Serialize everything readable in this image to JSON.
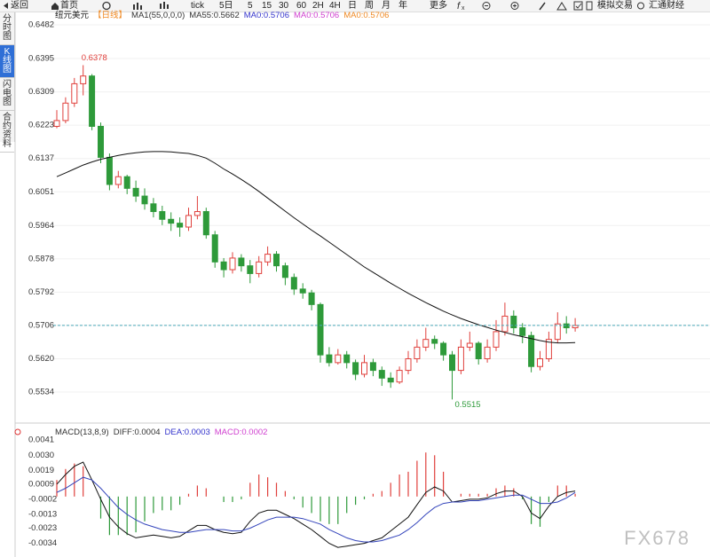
{
  "toolbar": [
    "返回",
    "首页",
    "tick",
    "5日",
    "5",
    "15",
    "30",
    "60",
    "2H",
    "4H",
    "日",
    "周",
    "月",
    "年",
    "更多",
    "模拟交易",
    "汇通财经"
  ],
  "sidebar": {
    "items": [
      "分时图",
      "K线图",
      "闪电图",
      "合约资料"
    ],
    "selected": 1
  },
  "watermark": "FX678",
  "chart_data": [
    {
      "type": "candlestick",
      "title": "纽元美元",
      "subtitle": "【日线】",
      "legend": [
        {
          "text": "MA1(55,0,0,0)",
          "color": "#333333"
        },
        {
          "text": "MA55:0.5662",
          "color": "#333333"
        },
        {
          "text": "MA0:0.5706",
          "color": "#3333cc"
        },
        {
          "text": "MA0:0.5706",
          "color": "#d040d0"
        },
        {
          "text": "MA0:0.5706",
          "color": "#f08a24"
        }
      ],
      "ylim": [
        0.547,
        0.6505
      ],
      "yticks": [
        0.6482,
        0.6395,
        0.6309,
        0.6223,
        0.6137,
        0.6051,
        0.5964,
        0.5878,
        0.5792,
        0.5706,
        {
          "value": 0.562,
          "label": "0.5620"
        },
        0.5534
      ],
      "grid": true,
      "up_color": "#e0403c",
      "down_color": "#2e9a3a",
      "last_price_color": "#4aa8b8",
      "candles": [
        [
          0.622,
          0.6262,
          0.6215,
          0.6235
        ],
        [
          0.6235,
          0.6295,
          0.6228,
          0.628
        ],
        [
          0.628,
          0.6345,
          0.627,
          0.633
        ],
        [
          0.633,
          0.6378,
          0.63,
          0.635
        ],
        [
          0.635,
          0.6355,
          0.621,
          0.622
        ],
        [
          0.622,
          0.623,
          0.6125,
          0.614
        ],
        [
          0.614,
          0.615,
          0.6055,
          0.607
        ],
        [
          0.607,
          0.6105,
          0.606,
          0.609
        ],
        [
          0.609,
          0.6095,
          0.6045,
          0.606
        ],
        [
          0.606,
          0.608,
          0.6025,
          0.604
        ],
        [
          0.604,
          0.606,
          0.6005,
          0.602
        ],
        [
          0.602,
          0.6035,
          0.5985,
          0.6
        ],
        [
          0.6,
          0.6015,
          0.5965,
          0.598
        ],
        [
          0.598,
          0.5998,
          0.595,
          0.597
        ],
        [
          0.597,
          0.5985,
          0.5935,
          0.596
        ],
        [
          0.596,
          0.601,
          0.595,
          0.599
        ],
        [
          0.599,
          0.604,
          0.598,
          0.6
        ],
        [
          0.6,
          0.601,
          0.593,
          0.594
        ],
        [
          0.594,
          0.595,
          0.5855,
          0.587
        ],
        [
          0.587,
          0.588,
          0.583,
          0.585
        ],
        [
          0.585,
          0.5895,
          0.584,
          0.588
        ],
        [
          0.588,
          0.589,
          0.5845,
          0.586
        ],
        [
          0.586,
          0.5875,
          0.5815,
          0.584
        ],
        [
          0.584,
          0.5885,
          0.583,
          0.587
        ],
        [
          0.587,
          0.591,
          0.586,
          0.589
        ],
        [
          0.589,
          0.5898,
          0.5845,
          0.586
        ],
        [
          0.586,
          0.5868,
          0.581,
          0.583
        ],
        [
          0.583,
          0.584,
          0.5785,
          0.58
        ],
        [
          0.58,
          0.5815,
          0.5775,
          0.579
        ],
        [
          0.579,
          0.5798,
          0.5745,
          0.576
        ],
        [
          0.576,
          0.5765,
          0.561,
          0.563
        ],
        [
          0.563,
          0.565,
          0.56,
          0.561
        ],
        [
          0.561,
          0.5645,
          0.5605,
          0.563
        ],
        [
          0.563,
          0.564,
          0.5595,
          0.561
        ],
        [
          0.561,
          0.5618,
          0.5565,
          0.558
        ],
        [
          0.558,
          0.563,
          0.5572,
          0.561
        ],
        [
          0.561,
          0.562,
          0.5575,
          0.559
        ],
        [
          0.559,
          0.56,
          0.555,
          0.557
        ],
        [
          0.557,
          0.5585,
          0.5545,
          0.556
        ],
        [
          0.556,
          0.56,
          0.5555,
          0.559
        ],
        [
          0.559,
          0.564,
          0.558,
          0.562
        ],
        [
          0.562,
          0.567,
          0.561,
          0.565
        ],
        [
          0.565,
          0.57,
          0.564,
          0.567
        ],
        [
          0.567,
          0.568,
          0.5645,
          0.566
        ],
        [
          0.566,
          0.5665,
          0.5615,
          0.563
        ],
        [
          0.563,
          0.564,
          0.5515,
          0.559
        ],
        [
          0.559,
          0.567,
          0.558,
          0.565
        ],
        [
          0.565,
          0.569,
          0.564,
          0.566
        ],
        [
          0.566,
          0.5665,
          0.5605,
          0.562
        ],
        [
          0.562,
          0.567,
          0.561,
          0.565
        ],
        [
          0.565,
          0.572,
          0.564,
          0.569
        ],
        [
          0.569,
          0.5765,
          0.568,
          0.573
        ],
        [
          0.573,
          0.5745,
          0.5685,
          0.57
        ],
        [
          0.57,
          0.5712,
          0.566,
          0.568
        ],
        [
          0.568,
          0.569,
          0.5585,
          0.56
        ],
        [
          0.56,
          0.564,
          0.559,
          0.562
        ],
        [
          0.562,
          0.569,
          0.5612,
          0.567
        ],
        [
          0.567,
          0.574,
          0.566,
          0.571
        ],
        [
          0.571,
          0.573,
          0.5685,
          0.57
        ],
        [
          0.57,
          0.5725,
          0.569,
          0.5706
        ]
      ],
      "lines": [
        {
          "color": "#111111",
          "values": [
            0.609,
            0.61,
            0.611,
            0.612,
            0.6128,
            0.6135,
            0.614,
            0.6145,
            0.6149,
            0.6152,
            0.6154,
            0.6155,
            0.6155,
            0.6154,
            0.6152,
            0.615,
            0.6145,
            0.6138,
            0.6125,
            0.611,
            0.6097,
            0.6083,
            0.6068,
            0.6052,
            0.6035,
            0.6018,
            0.6001,
            0.5984,
            0.5968,
            0.5952,
            0.5937,
            0.5921,
            0.5905,
            0.5889,
            0.5873,
            0.5857,
            0.5843,
            0.5829,
            0.5815,
            0.5802,
            0.5789,
            0.5777,
            0.5765,
            0.5754,
            0.5743,
            0.5733,
            0.5724,
            0.5716,
            0.5708,
            0.5701,
            0.5694,
            0.5688,
            0.5682,
            0.5677,
            0.5672,
            0.5667,
            0.5663,
            0.5661,
            0.5661,
            0.5662
          ]
        }
      ]
    },
    {
      "type": "macd",
      "legend": [
        {
          "text": "MACD(13,8,9)",
          "color": "#333333"
        },
        {
          "text": "DIFF:0.0004",
          "color": "#333333"
        },
        {
          "text": "DEA:0.0003",
          "color": "#3333cc"
        },
        {
          "text": "MACD:0.0002",
          "color": "#d040d0"
        }
      ],
      "ylim": [
        -0.0042,
        0.0045
      ],
      "yticks": [
        0.0041,
        {
          "value": 0.003,
          "label": "0.0030"
        },
        0.0019,
        0.0009,
        -0.0002,
        -0.0013,
        -0.0023,
        -0.0034
      ],
      "up_color": "#e0403c",
      "down_color": "#2e9a3a",
      "histogram": [
        0.0012,
        0.002,
        0.0024,
        0.0022,
        0.0,
        -0.0016,
        -0.0028,
        -0.0028,
        -0.0028,
        -0.0026,
        -0.0018,
        -0.0012,
        -0.001,
        -0.001,
        -0.0006,
        0.0002,
        0.0008,
        0.0006,
        0.0,
        -0.0004,
        -0.0004,
        -0.0002,
        0.001,
        0.0016,
        0.0014,
        0.001,
        0.0004,
        -0.0002,
        -0.0008,
        -0.0012,
        -0.0018,
        -0.002,
        -0.002,
        -0.0012,
        -0.0006,
        -0.0002,
        0.0002,
        0.0004,
        0.001,
        0.0016,
        0.0018,
        0.0026,
        0.0032,
        0.003,
        0.0018,
        0.0,
        0.0002,
        0.0002,
        0.0002,
        0.0002,
        0.0006,
        0.0008,
        0.0006,
        -0.0002,
        -0.002,
        -0.0022,
        -0.0004,
        0.0008,
        0.0008,
        0.0002
      ],
      "lines": [
        {
          "color": "#111111",
          "values": [
            0.0009,
            0.0016,
            0.0022,
            0.0025,
            0.0012,
            -0.0002,
            -0.0015,
            -0.0022,
            -0.0027,
            -0.003,
            -0.0029,
            -0.0028,
            -0.0029,
            -0.003,
            -0.0029,
            -0.0025,
            -0.0021,
            -0.0021,
            -0.0024,
            -0.0026,
            -0.0027,
            -0.0026,
            -0.0018,
            -0.0012,
            -0.001,
            -0.001,
            -0.0013,
            -0.0016,
            -0.002,
            -0.0024,
            -0.0029,
            -0.0034,
            -0.0037,
            -0.0036,
            -0.0035,
            -0.0034,
            -0.0032,
            -0.003,
            -0.0025,
            -0.002,
            -0.0015,
            -0.0006,
            0.0003,
            0.0007,
            0.0004,
            -0.0004,
            -0.0003,
            -0.0002,
            -0.0002,
            -0.0001,
            0.0002,
            0.0004,
            0.0004,
            0.0,
            -0.0012,
            -0.0016,
            -0.0007,
            0.0,
            0.0003,
            0.0004
          ]
        },
        {
          "color": "#3344bb",
          "values": [
            0.0003,
            0.0006,
            0.001,
            0.0014,
            0.0012,
            0.0006,
            -0.0001,
            -0.0008,
            -0.0013,
            -0.0017,
            -0.002,
            -0.0022,
            -0.0024,
            -0.0025,
            -0.0026,
            -0.0026,
            -0.0025,
            -0.0024,
            -0.0024,
            -0.0024,
            -0.0025,
            -0.0025,
            -0.0023,
            -0.002,
            -0.0017,
            -0.0015,
            -0.0015,
            -0.0015,
            -0.0016,
            -0.0018,
            -0.002,
            -0.0024,
            -0.0027,
            -0.003,
            -0.0032,
            -0.0033,
            -0.0033,
            -0.0032,
            -0.003,
            -0.0028,
            -0.0024,
            -0.0019,
            -0.0013,
            -0.0008,
            -0.0005,
            -0.0004,
            -0.0004,
            -0.0003,
            -0.0003,
            -0.0002,
            -0.0001,
            0.0,
            0.0001,
            0.0001,
            -0.0002,
            -0.0005,
            -0.0005,
            -0.0004,
            -0.0001,
            0.0003
          ]
        }
      ]
    }
  ]
}
